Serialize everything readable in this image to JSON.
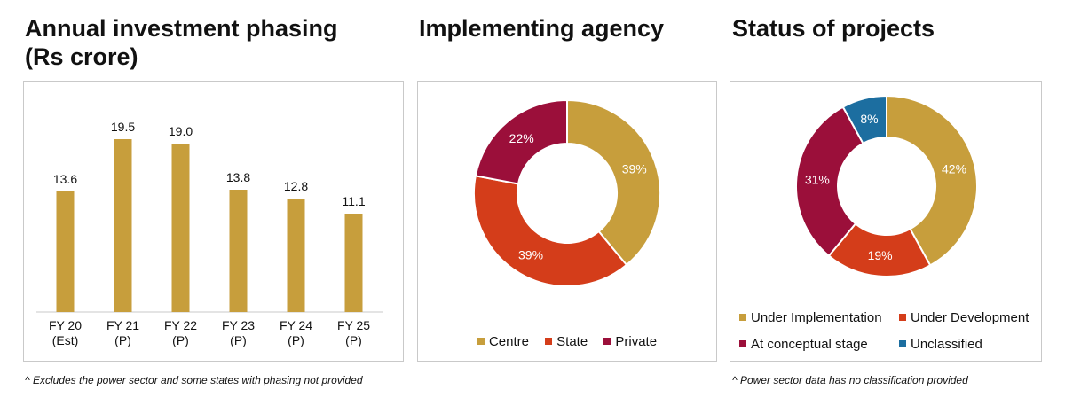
{
  "charts": {
    "bar": {
      "title_line1": "Annual investment phasing",
      "title_line2": "(Rs crore)",
      "footnote": "^ Excludes the power sector and some states with phasing  not provided"
    },
    "agency": {
      "title": "Implementing agency"
    },
    "status": {
      "title": "Status of projects",
      "footnote": "^ Power sector data has no classification provided"
    }
  },
  "colors": {
    "gold": "#C79E3C",
    "orange_red": "#D43D1A",
    "maroon": "#9B0F3A",
    "blue": "#1C6EA0",
    "axis": "#c8c8c8"
  },
  "chart_data": [
    {
      "type": "bar",
      "title": "Annual investment phasing (Rs crore)",
      "categories": [
        [
          "FY 20",
          "(Est)"
        ],
        [
          "FY 21",
          "(P)"
        ],
        [
          "FY 22",
          "(P)"
        ],
        [
          "FY 23",
          "(P)"
        ],
        [
          "FY 24",
          "(P)"
        ],
        [
          "FY 25",
          "(P)"
        ]
      ],
      "values": [
        13.6,
        19.5,
        19.0,
        13.8,
        12.8,
        11.1
      ],
      "value_labels": [
        "13.6",
        "19.5",
        "19.0",
        "13.8",
        "12.8",
        "11.1"
      ],
      "ylim": [
        0,
        22
      ],
      "grid": false
    },
    {
      "type": "pie",
      "donut": true,
      "title": "Implementing agency",
      "slices": [
        {
          "label": "Centre",
          "value": 39,
          "text": "39%",
          "color": "#C79E3C"
        },
        {
          "label": "State",
          "value": 39,
          "text": "39%",
          "color": "#D43D1A"
        },
        {
          "label": "Private",
          "value": 22,
          "text": "22%",
          "color": "#9B0F3A"
        }
      ],
      "legend_position": "bottom"
    },
    {
      "type": "pie",
      "donut": true,
      "title": "Status of projects",
      "slices": [
        {
          "label": "Under Implementation",
          "value": 42,
          "text": "42%",
          "color": "#C79E3C"
        },
        {
          "label": "Under Development",
          "value": 19,
          "text": "19%",
          "color": "#D43D1A"
        },
        {
          "label": "At conceptual stage",
          "value": 31,
          "text": "31%",
          "color": "#9B0F3A"
        },
        {
          "label": "Unclassified",
          "value": 8,
          "text": "8%",
          "color": "#1C6EA0"
        }
      ],
      "legend_position": "bottom"
    }
  ]
}
